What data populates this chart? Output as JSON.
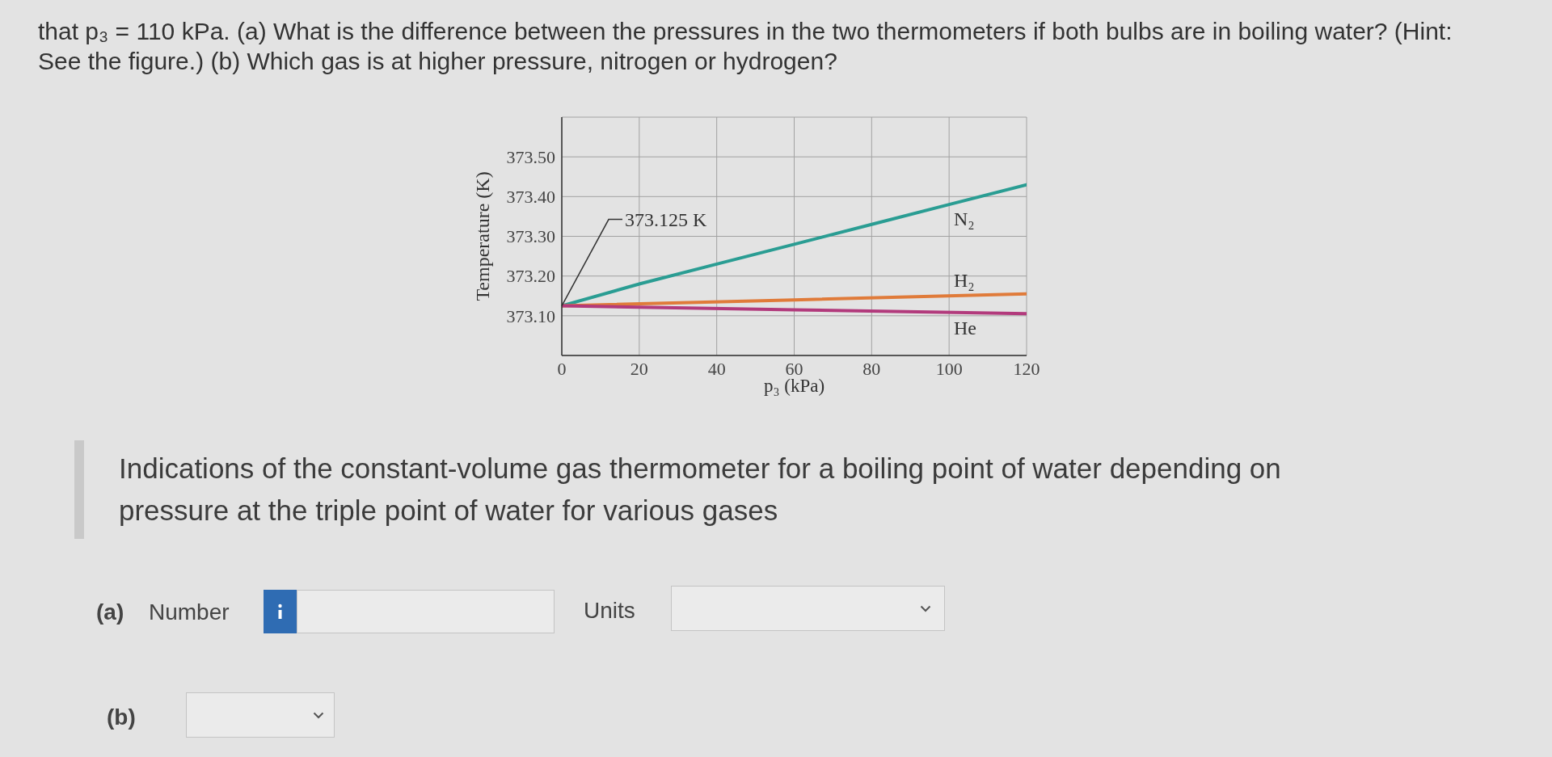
{
  "chart_data": {
    "type": "line",
    "title": "that p₃ = 110 kPa. (a) What is the difference between the pressures in the two thermometers if both bulbs are in boiling water? (Hint: See the figure.) (b) Which gas is at higher pressure, nitrogen or hydrogen?",
    "xlabel": "p₃ (kPa)",
    "ylabel": "Temperature (K)",
    "series": [
      {
        "name": "N₂",
        "color": "#2a9d93",
        "x": [
          0,
          20,
          40,
          60,
          80,
          100,
          120
        ],
        "values": [
          373.125,
          373.18,
          373.23,
          373.28,
          373.33,
          373.38,
          373.43
        ]
      },
      {
        "name": "H₂",
        "color": "#e07b3a",
        "x": [
          0,
          60,
          120
        ],
        "values": [
          373.125,
          373.14,
          373.155
        ]
      },
      {
        "name": "He",
        "color": "#b23a7c",
        "x": [
          0,
          60,
          120
        ],
        "values": [
          373.125,
          373.115,
          373.105
        ]
      }
    ],
    "xlim": [
      0,
      120
    ],
    "xticks": [
      0,
      20,
      40,
      60,
      80,
      100,
      120
    ],
    "ylim": [
      373.0,
      373.6
    ],
    "yticks": [
      {
        "value": 373.1,
        "label": "373.10"
      },
      {
        "value": 373.2,
        "label": "373.20"
      },
      {
        "value": 373.3,
        "label": "373.30"
      },
      {
        "value": 373.4,
        "label": "373.40"
      },
      {
        "value": 373.5,
        "label": "373.50"
      },
      {
        "value": 373.6,
        "label": null
      }
    ],
    "grid": true,
    "marker": "none",
    "annotations": [
      {
        "text": "373.125 K",
        "x": 0,
        "y": 373.125
      },
      "Indications of the constant-volume gas thermometer for a boiling point of water depending on pressure at the triple point of water for various gases",
      "(a)",
      "Number",
      "Units",
      "(b)"
    ]
  }
}
